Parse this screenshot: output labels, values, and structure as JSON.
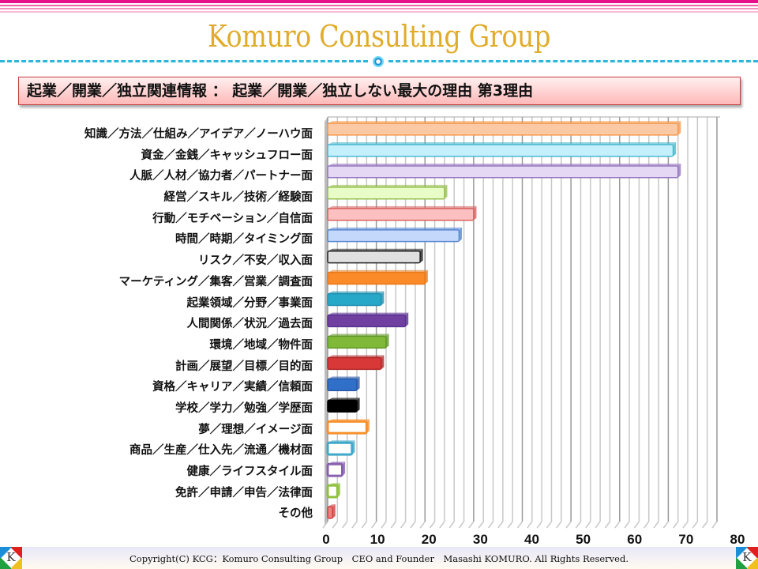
{
  "header": {
    "brand": "Komuro Consulting Group",
    "subtitle": "起業／開業／独立関連情報 ： 起業／開業／独立しない最大の理由 第3理由"
  },
  "footer": {
    "copyright": "Copyright(C) KCG：Komuro Consulting Group　CEO and Founder　Masashi KOMURO. All Rights Reserved.",
    "logo_text": "K"
  },
  "chart_data": {
    "type": "bar",
    "orientation": "horizontal",
    "title": "起業／開業／独立しない最大の理由 第3理由",
    "categories": [
      "知識／方法／仕組み／アイデア／ノーハウ面",
      "資金／金銭／キャッシュフロー面",
      "人脈／人材／協力者／パートナー面",
      "経営／スキル／技術／経験面",
      "行動／モチベーション／自信面",
      "時間／時期／タイミング面",
      "リスク／不安／収入面",
      "マーケティング／集客／営業／調査面",
      "起業領域／分野／事業面",
      "人間関係／状況／過去面",
      "環境／地域／物件面",
      "計画／展望／目標／目的面",
      "資格／キャリア／実績／信頼面",
      "学校／学力／勉強／学歴面",
      "夢／理想／イメージ面",
      "商品／生産／仕入先／流通／機材面",
      "健康／ライフスタイル面",
      "免許／申請／申告／法律面",
      "その他"
    ],
    "values": [
      72,
      71,
      72,
      24,
      30,
      27,
      19,
      20,
      11,
      16,
      12,
      11,
      6,
      6,
      8,
      5,
      3,
      2,
      1
    ],
    "colors": [
      "#fbc9a4",
      "#c4f0fc",
      "#e4d8f4",
      "#e8fcc8",
      "#fcc0c0",
      "#c4d8fc",
      "#e0e0e0",
      "#fb8a28",
      "#28a8c8",
      "#7040a0",
      "#80b838",
      "#d83838",
      "#3070c8",
      "#000000",
      "#ffffff",
      "#ffffff",
      "#ffffff",
      "#ffffff",
      "#f08080"
    ],
    "borders": [
      "#f59a50",
      "#48b8d0",
      "#9878c0",
      "#98c050",
      "#d86060",
      "#5888d0",
      "#222222",
      "#e87818",
      "#2090b0",
      "#583090",
      "#609828",
      "#b02828",
      "#2858a8",
      "#000000",
      "#f8902c",
      "#40a8c8",
      "#8860b0",
      "#90c040",
      "#d04040"
    ],
    "xticks": [
      0,
      10,
      20,
      30,
      40,
      50,
      60,
      70,
      80
    ],
    "xlim": [
      0,
      80
    ],
    "xlabel": "",
    "ylabel": "",
    "grid": true,
    "legend": "none"
  }
}
